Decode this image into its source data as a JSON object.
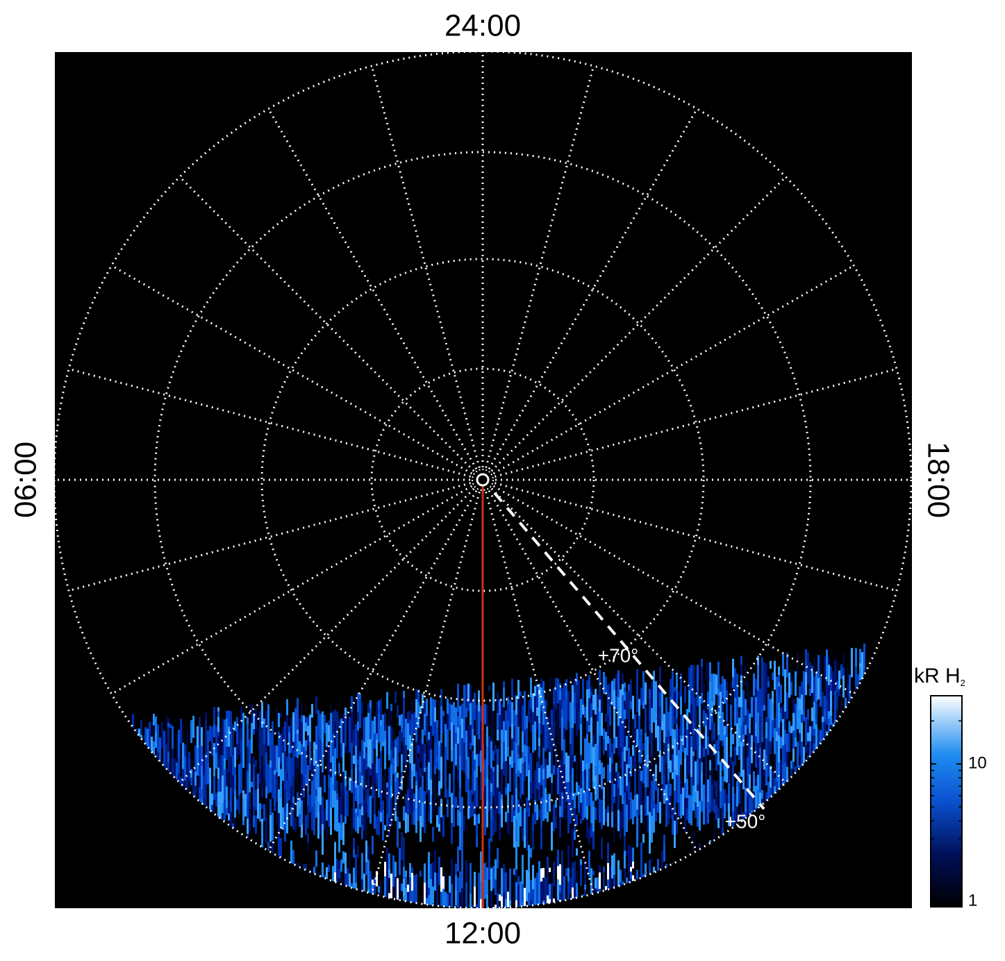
{
  "chart_data": {
    "type": "polar",
    "hour_labels": {
      "top": "24:00",
      "bottom": "12:00",
      "left": "06:00",
      "right": "18:00"
    },
    "latitude_labels": [
      "+70°",
      "+50°"
    ],
    "colorbar": {
      "label": "kR H",
      "label_subscript": "2",
      "lim": [
        1,
        30
      ],
      "ticks": [
        1,
        10
      ],
      "log": true
    }
  }
}
